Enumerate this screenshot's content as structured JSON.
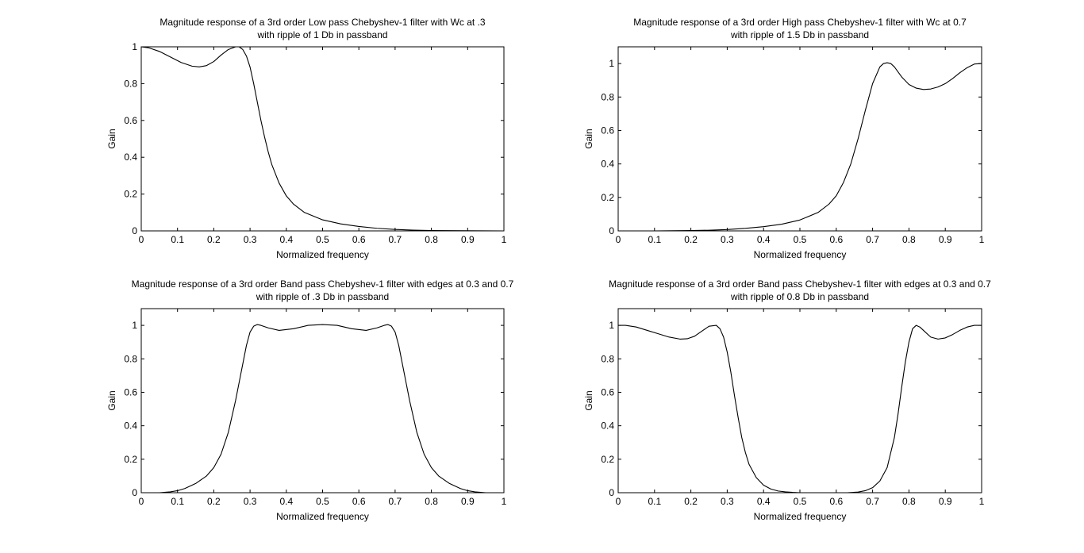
{
  "chart_data": [
    {
      "type": "line",
      "title": [
        "Magnitude response of a 3rd order Low pass Chebyshev-1 filter with Wc at .3",
        "with ripple of 1 Db in passband"
      ],
      "xlabel": "Normalized frequency",
      "ylabel": "Gain",
      "xlim": [
        0,
        1
      ],
      "ylim": [
        0,
        1
      ],
      "xticks": [
        "0",
        "0.1",
        "0.2",
        "0.3",
        "0.4",
        "0.5",
        "0.6",
        "0.7",
        "0.8",
        "0.9",
        "1"
      ],
      "yticks": [
        "0",
        "0.2",
        "0.4",
        "0.6",
        "0.8",
        "1"
      ],
      "grid": false,
      "series": [
        {
          "color": "#000000",
          "x": [
            0,
            0.02,
            0.05,
            0.08,
            0.11,
            0.14,
            0.16,
            0.18,
            0.2,
            0.22,
            0.24,
            0.26,
            0.27,
            0.28,
            0.29,
            0.3,
            0.31,
            0.32,
            0.33,
            0.34,
            0.35,
            0.36,
            0.38,
            0.4,
            0.42,
            0.45,
            0.5,
            0.55,
            0.6,
            0.65,
            0.7,
            0.75,
            0.8,
            0.9,
            1.0
          ],
          "y": [
            1.0,
            0.995,
            0.975,
            0.945,
            0.915,
            0.895,
            0.891,
            0.898,
            0.92,
            0.955,
            0.985,
            1.0,
            1.0,
            0.985,
            0.95,
            0.89,
            0.8,
            0.7,
            0.6,
            0.51,
            0.43,
            0.36,
            0.26,
            0.19,
            0.145,
            0.1,
            0.06,
            0.038,
            0.024,
            0.014,
            0.008,
            0.004,
            0.002,
            0.001,
            0.0
          ]
        }
      ]
    },
    {
      "type": "line",
      "title": [
        "Magnitude response of a 3rd order High pass Chebyshev-1 filter with Wc at 0.7",
        "with ripple of 1.5 Db in passband"
      ],
      "xlabel": "Normalized frequency",
      "ylabel": "Gain",
      "xlim": [
        0,
        1
      ],
      "ylim": [
        0,
        1.1
      ],
      "xticks": [
        "0",
        "0.1",
        "0.2",
        "0.3",
        "0.4",
        "0.5",
        "0.6",
        "0.7",
        "0.8",
        "0.9",
        "1"
      ],
      "yticks": [
        "0",
        "0.2",
        "0.4",
        "0.6",
        "0.8",
        "1"
      ],
      "grid": false,
      "series": [
        {
          "color": "#000000",
          "x": [
            0,
            0.1,
            0.2,
            0.25,
            0.3,
            0.35,
            0.4,
            0.45,
            0.5,
            0.55,
            0.58,
            0.6,
            0.62,
            0.64,
            0.66,
            0.68,
            0.7,
            0.72,
            0.73,
            0.74,
            0.75,
            0.76,
            0.78,
            0.8,
            0.82,
            0.84,
            0.86,
            0.88,
            0.9,
            0.92,
            0.94,
            0.96,
            0.98,
            1.0
          ],
          "y": [
            0.0,
            0.0,
            0.002,
            0.004,
            0.008,
            0.015,
            0.025,
            0.04,
            0.065,
            0.11,
            0.16,
            0.21,
            0.29,
            0.4,
            0.55,
            0.72,
            0.88,
            0.98,
            1.0,
            1.005,
            1.0,
            0.98,
            0.92,
            0.875,
            0.853,
            0.845,
            0.848,
            0.86,
            0.88,
            0.91,
            0.945,
            0.975,
            0.997,
            1.0
          ]
        }
      ]
    },
    {
      "type": "line",
      "title": [
        "Magnitude response of a 3rd order Band pass Chebyshev-1 filter with edges at 0.3 and 0.7",
        "with ripple of .3 Db in passband"
      ],
      "xlabel": "Normalized frequency",
      "ylabel": "Gain",
      "xlim": [
        0,
        1
      ],
      "ylim": [
        0,
        1.1
      ],
      "xticks": [
        "0",
        "0.1",
        "0.2",
        "0.3",
        "0.4",
        "0.5",
        "0.6",
        "0.7",
        "0.8",
        "0.9",
        "1"
      ],
      "yticks": [
        "0",
        "0.2",
        "0.4",
        "0.6",
        "0.8",
        "1"
      ],
      "grid": false,
      "series": [
        {
          "color": "#000000",
          "x": [
            0.05,
            0.08,
            0.1,
            0.12,
            0.15,
            0.18,
            0.2,
            0.22,
            0.24,
            0.26,
            0.27,
            0.28,
            0.29,
            0.3,
            0.31,
            0.32,
            0.33,
            0.35,
            0.38,
            0.42,
            0.46,
            0.5,
            0.54,
            0.58,
            0.62,
            0.65,
            0.67,
            0.68,
            0.69,
            0.7,
            0.71,
            0.72,
            0.73,
            0.74,
            0.76,
            0.78,
            0.8,
            0.82,
            0.85,
            0.88,
            0.9,
            0.92,
            0.95
          ],
          "y": [
            0.0,
            0.005,
            0.012,
            0.025,
            0.055,
            0.1,
            0.15,
            0.23,
            0.36,
            0.55,
            0.66,
            0.77,
            0.88,
            0.96,
            0.995,
            1.005,
            1.0,
            0.985,
            0.97,
            0.98,
            1.0,
            1.005,
            1.0,
            0.98,
            0.97,
            0.985,
            1.0,
            1.005,
            0.995,
            0.96,
            0.88,
            0.77,
            0.66,
            0.55,
            0.36,
            0.23,
            0.15,
            0.1,
            0.055,
            0.025,
            0.012,
            0.005,
            0.0
          ]
        }
      ]
    },
    {
      "type": "line",
      "title": [
        "Magnitude response of a 3rd order Band pass Chebyshev-1 filter with edges at 0.3 and 0.7",
        "with ripple of 0.8 Db in passband"
      ],
      "xlabel": "Normalized frequency",
      "ylabel": "Gain",
      "xlim": [
        0,
        1
      ],
      "ylim": [
        0,
        1.1
      ],
      "xticks": [
        "0",
        "0.1",
        "0.2",
        "0.3",
        "0.4",
        "0.5",
        "0.6",
        "0.7",
        "0.8",
        "0.9",
        "1"
      ],
      "yticks": [
        "0",
        "0.2",
        "0.4",
        "0.6",
        "0.8",
        "1"
      ],
      "grid": false,
      "series": [
        {
          "color": "#000000",
          "x": [
            0,
            0.02,
            0.05,
            0.08,
            0.11,
            0.14,
            0.17,
            0.19,
            0.21,
            0.23,
            0.25,
            0.27,
            0.28,
            0.29,
            0.3,
            0.31,
            0.32,
            0.33,
            0.34,
            0.35,
            0.36,
            0.38,
            0.4,
            0.42,
            0.44,
            0.46,
            0.48,
            0.5,
            0.52,
            0.55,
            0.6,
            0.63,
            0.66,
            0.68,
            0.7,
            0.72,
            0.74,
            0.76,
            0.77,
            0.78,
            0.79,
            0.8,
            0.81,
            0.82,
            0.83,
            0.84,
            0.86,
            0.88,
            0.9,
            0.92,
            0.94,
            0.96,
            0.98,
            1.0
          ],
          "y": [
            1.0,
            1.0,
            0.99,
            0.97,
            0.95,
            0.93,
            0.918,
            0.92,
            0.935,
            0.965,
            0.995,
            1.0,
            0.98,
            0.93,
            0.84,
            0.72,
            0.58,
            0.45,
            0.33,
            0.24,
            0.17,
            0.09,
            0.045,
            0.022,
            0.01,
            0.005,
            0.002,
            0.0,
            0.0,
            0.0,
            0.0,
            0.0,
            0.004,
            0.012,
            0.03,
            0.07,
            0.15,
            0.33,
            0.47,
            0.63,
            0.78,
            0.9,
            0.98,
            1.0,
            0.99,
            0.97,
            0.93,
            0.918,
            0.925,
            0.945,
            0.97,
            0.99,
            1.0,
            1.0
          ]
        }
      ]
    }
  ]
}
